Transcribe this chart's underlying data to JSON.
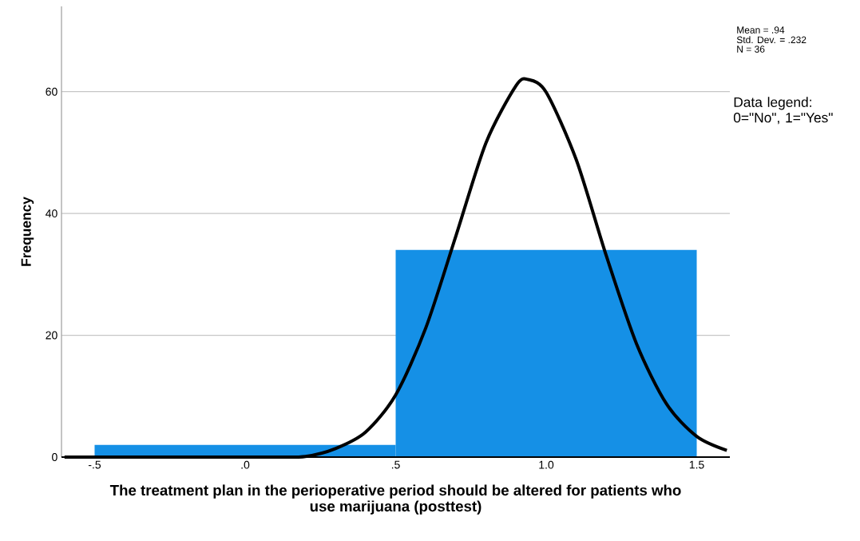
{
  "chart_data": {
    "type": "histogram",
    "xlabel": "The treatment plan in the perioperative period should be altered for patients who use marijuana (posttest)",
    "ylabel": "Frequency",
    "bins": [
      -0.5,
      0.5,
      1.5
    ],
    "values": [
      2,
      34
    ],
    "color": "#1590e6",
    "series": [
      {
        "type": "line",
        "color": "#000000",
        "x": [
          -0.6,
          -0.4,
          -0.2,
          0.0,
          0.1,
          0.2,
          0.3,
          0.4,
          0.5,
          0.6,
          0.7,
          0.8,
          0.9,
          0.94,
          1.0,
          1.1,
          1.2,
          1.3,
          1.4,
          1.5,
          1.6
        ],
        "values": [
          0,
          0,
          0,
          0,
          0,
          0.1,
          1.4,
          4.1,
          10.2,
          21.2,
          36.3,
          51.6,
          61,
          62,
          59.9,
          48.8,
          33,
          18.6,
          8.7,
          3.4,
          1.1
        ]
      }
    ],
    "xlim": [
      -0.61,
      1.61
    ],
    "ylim": [
      0,
      74
    ],
    "xticks": [
      {
        "value": -0.5,
        "label": "-.5"
      },
      {
        "value": 0,
        "label": ".0"
      },
      {
        "value": 0.5,
        "label": ".5"
      },
      {
        "value": 1.0,
        "label": "1.0"
      },
      {
        "value": 1.5,
        "label": "1.5"
      }
    ],
    "yticks": [
      0,
      20,
      40,
      60
    ],
    "grid": "y",
    "annotations": [
      "Mean = .94",
      "Std. Dev. = .232",
      "N = 36",
      "Data legend: 0=\"No\", 1=\"Yes\""
    ]
  }
}
